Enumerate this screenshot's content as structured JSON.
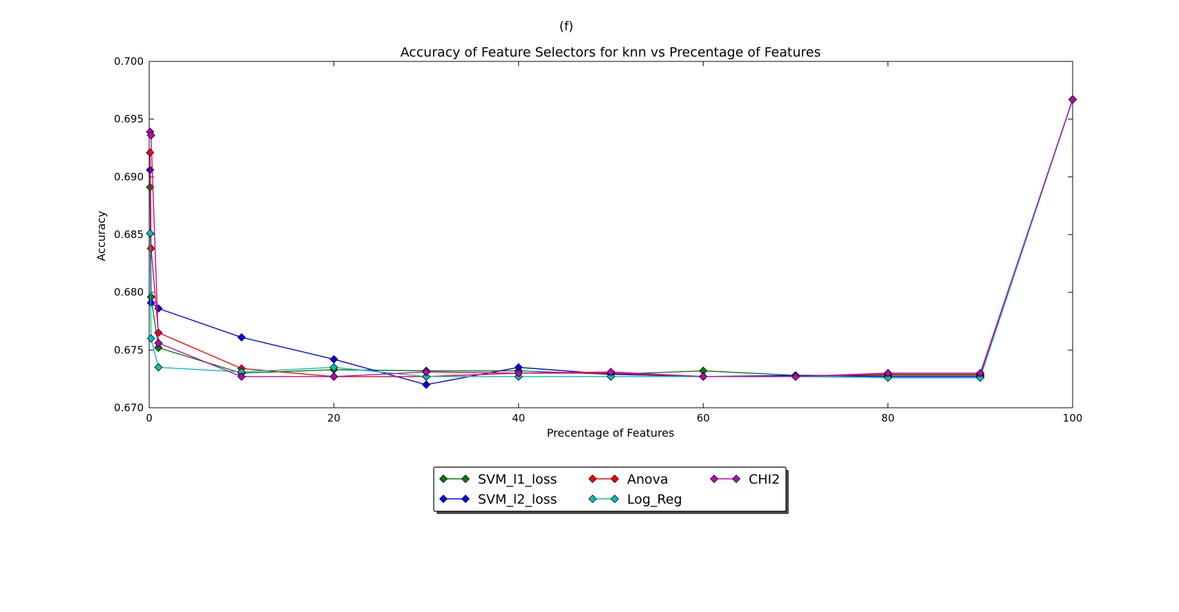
{
  "figure_label": "(f)",
  "chart_data": {
    "type": "line",
    "title": "Accuracy of Feature Selectors for knn vs Precentage of Features",
    "xlabel": "Precentage of Features",
    "ylabel": "Accuracy",
    "xlim": [
      0,
      100
    ],
    "ylim": [
      0.67,
      0.7
    ],
    "xticks": [
      0,
      20,
      40,
      60,
      80,
      100
    ],
    "xtick_labels": [
      "0",
      "20",
      "40",
      "60",
      "80",
      "100"
    ],
    "yticks": [
      0.67,
      0.675,
      0.68,
      0.685,
      0.69,
      0.695,
      0.7
    ],
    "ytick_labels": [
      "0.670",
      "0.675",
      "0.680",
      "0.685",
      "0.690",
      "0.695",
      "0.700"
    ],
    "grid": false,
    "legend_position": "below plot, center",
    "x": [
      0.1,
      0.2,
      1,
      10,
      20,
      30,
      40,
      50,
      60,
      70,
      80,
      90,
      100
    ],
    "series": [
      {
        "name": "SVM_l1_loss",
        "color": "#008000",
        "values": [
          0.6891,
          0.6796,
          0.6752,
          0.673,
          0.6733,
          0.6732,
          0.6732,
          0.6729,
          0.6732,
          0.6728,
          0.6728,
          0.6728,
          0.6967
        ]
      },
      {
        "name": "SVM_l2_loss",
        "color": "#0000ff",
        "values": [
          0.6906,
          0.6791,
          0.6786,
          0.6761,
          0.6742,
          0.672,
          0.6735,
          0.6729,
          0.6727,
          0.6728,
          0.6727,
          0.6727,
          0.6967
        ]
      },
      {
        "name": "Anova",
        "color": "#ff0000",
        "values": [
          0.6921,
          0.6838,
          0.6765,
          0.6734,
          0.6727,
          0.6727,
          0.673,
          0.673,
          0.6727,
          0.6727,
          0.6729,
          0.6729,
          0.6967
        ]
      },
      {
        "name": "Log_Reg",
        "color": "#00bfbf",
        "values": [
          0.6851,
          0.676,
          0.6735,
          0.6731,
          0.6735,
          0.6727,
          0.6727,
          0.6727,
          0.6727,
          0.6727,
          0.6726,
          0.6726,
          0.6967
        ]
      },
      {
        "name": "CHI2",
        "color": "#bf00bf",
        "values": [
          0.6939,
          0.6936,
          0.6756,
          0.6727,
          0.6727,
          0.6731,
          0.673,
          0.6731,
          0.6727,
          0.6727,
          0.673,
          0.673,
          0.6967
        ]
      }
    ]
  }
}
